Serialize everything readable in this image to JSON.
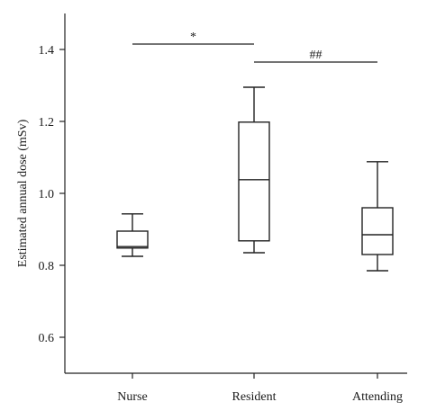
{
  "chart_data": {
    "type": "box",
    "title": "",
    "xlabel": "",
    "ylabel": "Estimated annual dose (mSv)",
    "ylim": [
      0.5,
      1.5
    ],
    "yticks": [
      0.6,
      0.8,
      1.0,
      1.2,
      1.4
    ],
    "ytick_labels": [
      "0.6",
      "0.8",
      "1.0",
      "1.2",
      "1.4"
    ],
    "categories": [
      "Nurse",
      "Resident",
      "Attending"
    ],
    "boxes": [
      {
        "category": "Nurse",
        "min": 0.825,
        "q1": 0.848,
        "median": 0.852,
        "q3": 0.895,
        "max": 0.943
      },
      {
        "category": "Resident",
        "min": 0.835,
        "q1": 0.868,
        "median": 1.038,
        "q3": 1.198,
        "max": 1.295
      },
      {
        "category": "Attending",
        "min": 0.785,
        "q1": 0.83,
        "median": 0.885,
        "q3": 0.96,
        "max": 1.088
      }
    ],
    "significance": [
      {
        "from": "Nurse",
        "to": "Resident",
        "y": 1.415,
        "label": "*"
      },
      {
        "from": "Resident",
        "to": "Attending",
        "y": 1.365,
        "label": "##"
      }
    ],
    "grid": false,
    "legend": "none"
  }
}
